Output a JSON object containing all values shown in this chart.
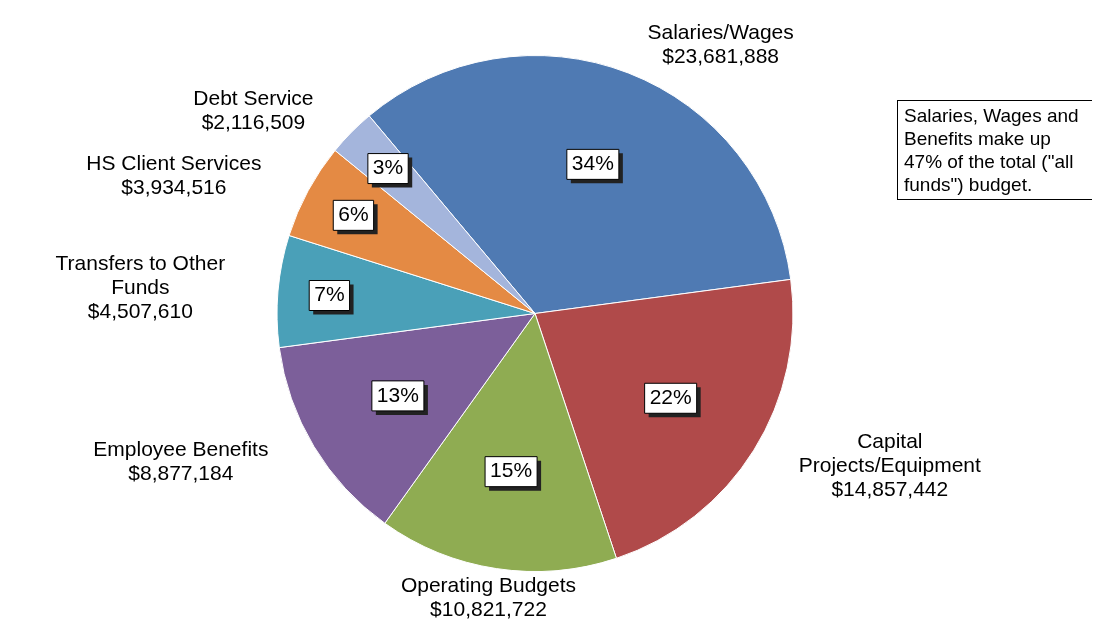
{
  "chart_data": {
    "type": "pie",
    "categories": [
      "Salaries/Wages\n$23,681,888",
      "Capital\nProjects/Equipment\n$14,857,442",
      "Operating Budgets\n$10,821,722",
      "Employee Benefits\n$8,877,184",
      "Transfers to Other\nFunds\n$4,507,610",
      "HS Client Services\n$3,934,516",
      "Debt Service\n$2,116,509"
    ],
    "values": [
      34,
      22,
      15,
      13,
      7,
      6,
      3
    ],
    "colors": [
      "#4f7ab3",
      "#b04a4a",
      "#8fac52",
      "#7c5f9a",
      "#4aa0b8",
      "#e48a44",
      "#a4b5dc"
    ],
    "value_labels": [
      "34%",
      "22%",
      "15%",
      "13%",
      "7%",
      "6%",
      "3%"
    ],
    "annotations": [
      "Salaries, Wages and Benefits make up 47% of the total (\"all funds\") budget."
    ],
    "legend": false
  }
}
